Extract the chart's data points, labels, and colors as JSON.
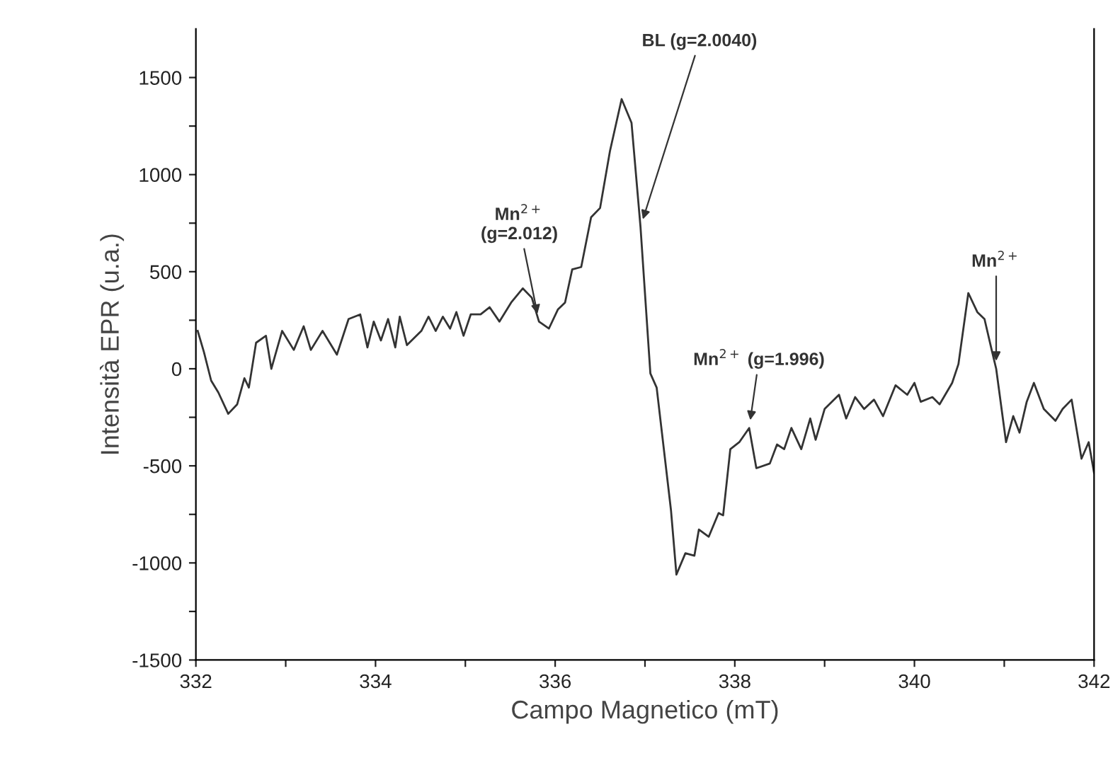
{
  "chart_data": {
    "type": "line",
    "xlabel": "Campo Magnetico (mT)",
    "ylabel": "Intensità EPR (u.a.)",
    "xlim": [
      332,
      342
    ],
    "ylim": [
      -1500,
      1750
    ],
    "xticks": [
      332,
      {
        "value": 333,
        "label": null
      },
      334,
      {
        "value": 335,
        "label": null
      },
      336,
      {
        "value": 337,
        "label": null
      },
      338,
      {
        "value": 339,
        "label": null
      },
      340,
      {
        "value": 341,
        "label": null
      },
      342
    ],
    "yticks": [
      -1500,
      {
        "value": -1250,
        "label": null
      },
      -1000,
      {
        "value": -750,
        "label": null
      },
      -500,
      {
        "value": -250,
        "label": null
      },
      0,
      {
        "value": 250,
        "label": null
      },
      500,
      {
        "value": 750,
        "label": null
      },
      1000,
      {
        "value": 1250,
        "label": null
      },
      1500
    ],
    "grid": false,
    "marker": "none",
    "line_style": "solid",
    "series": [
      {
        "color": "#333333",
        "x": [
          332.02,
          332.09,
          332.17,
          332.25,
          332.36,
          332.46,
          332.54,
          332.59,
          332.67,
          332.78,
          332.84,
          332.96,
          333.09,
          333.2,
          333.28,
          333.41,
          333.57,
          333.7,
          333.83,
          333.91,
          333.98,
          334.06,
          334.14,
          334.22,
          334.27,
          334.35,
          334.51,
          334.59,
          334.67,
          334.75,
          334.83,
          334.9,
          334.98,
          335.06,
          335.17,
          335.27,
          335.38,
          335.51,
          335.64,
          335.74,
          335.82,
          335.93,
          336.03,
          336.11,
          336.19,
          336.29,
          336.4,
          336.5,
          336.61,
          336.74,
          336.85,
          336.95,
          337.06,
          337.13,
          337.29,
          337.35,
          337.45,
          337.55,
          337.6,
          337.71,
          337.82,
          337.87,
          337.95,
          338.05,
          338.16,
          338.24,
          338.39,
          338.47,
          338.55,
          338.63,
          338.74,
          338.84,
          338.9,
          339.0,
          339.16,
          339.24,
          339.34,
          339.44,
          339.55,
          339.65,
          339.79,
          339.92,
          340.0,
          340.07,
          340.2,
          340.28,
          340.42,
          340.49,
          340.6,
          340.7,
          340.78,
          340.86,
          340.91,
          341.02,
          341.1,
          341.17,
          341.25,
          341.33,
          341.44,
          341.57,
          341.65,
          341.75,
          341.86,
          341.94,
          342.0
        ],
        "values": [
          195,
          85,
          -61,
          -122,
          -232,
          -183,
          -49,
          -97,
          134,
          170,
          0,
          195,
          97,
          219,
          97,
          195,
          73,
          256,
          280,
          110,
          243,
          146,
          256,
          110,
          268,
          122,
          195,
          268,
          195,
          268,
          207,
          292,
          170,
          280,
          280,
          317,
          243,
          341,
          414,
          366,
          243,
          207,
          305,
          341,
          512,
          524,
          780,
          828,
          1121,
          1389,
          1267,
          731,
          -24,
          -97,
          -731,
          -1060,
          -950,
          -963,
          -828,
          -865,
          -743,
          -755,
          -414,
          -378,
          -305,
          -512,
          -488,
          -390,
          -414,
          -305,
          -414,
          -256,
          -366,
          -207,
          -134,
          -256,
          -146,
          -207,
          -159,
          -244,
          -85,
          -134,
          -73,
          -170,
          -146,
          -183,
          -73,
          24,
          390,
          292,
          256,
          97,
          0,
          -378,
          -244,
          -329,
          -170,
          -73,
          -207,
          -268,
          -207,
          -159,
          -463,
          -378,
          -536
        ]
      }
    ],
    "annotations": [
      {
        "text": "Mn$^{2+}$\n(g=2.012)",
        "x": 335.82,
        "y": 243
      },
      {
        "text": "BL (g=2.0040)",
        "x": 336.95,
        "y": 731
      },
      {
        "text": "Mn$^{2+}$ (g=1.996)",
        "x": 338.16,
        "y": -305
      },
      {
        "text": "Mn$^{2+}$",
        "x": 340.91,
        "y": 0
      }
    ]
  }
}
